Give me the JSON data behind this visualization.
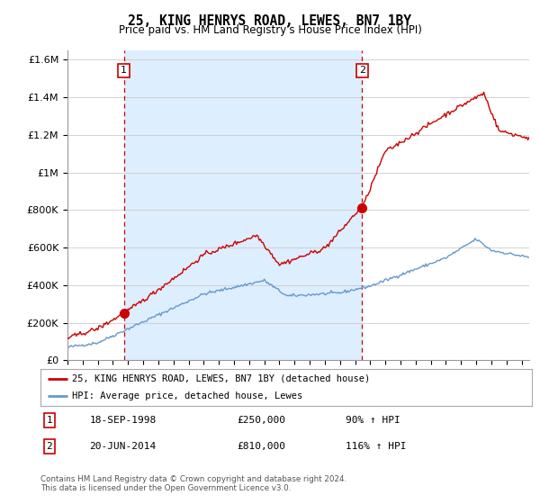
{
  "title": "25, KING HENRYS ROAD, LEWES, BN7 1BY",
  "subtitle": "Price paid vs. HM Land Registry's House Price Index (HPI)",
  "title_fontsize": 10.5,
  "subtitle_fontsize": 8.5,
  "ylabel_ticks": [
    "£0",
    "£200K",
    "£400K",
    "£600K",
    "£800K",
    "£1M",
    "£1.2M",
    "£1.4M",
    "£1.6M"
  ],
  "ytick_values": [
    0,
    200000,
    400000,
    600000,
    800000,
    1000000,
    1200000,
    1400000,
    1600000
  ],
  "ylim": [
    0,
    1650000
  ],
  "xlim_start": 1995.0,
  "xlim_end": 2025.5,
  "red_line_color": "#cc0000",
  "blue_line_color": "#6699cc",
  "dashed_line_color": "#cc0000",
  "bg_highlight_color": "#ddeeff",
  "transaction1_x": 1998.72,
  "transaction1_y": 250000,
  "transaction1_label": "1",
  "transaction2_x": 2014.47,
  "transaction2_y": 810000,
  "transaction2_label": "2",
  "legend_label_red": "25, KING HENRYS ROAD, LEWES, BN7 1BY (detached house)",
  "legend_label_blue": "HPI: Average price, detached house, Lewes",
  "table_row1": [
    "1",
    "18-SEP-1998",
    "£250,000",
    "90% ↑ HPI"
  ],
  "table_row2": [
    "2",
    "20-JUN-2014",
    "£810,000",
    "116% ↑ HPI"
  ],
  "footnote": "Contains HM Land Registry data © Crown copyright and database right 2024.\nThis data is licensed under the Open Government Licence v3.0.",
  "bg_color": "#ffffff",
  "grid_color": "#cccccc"
}
